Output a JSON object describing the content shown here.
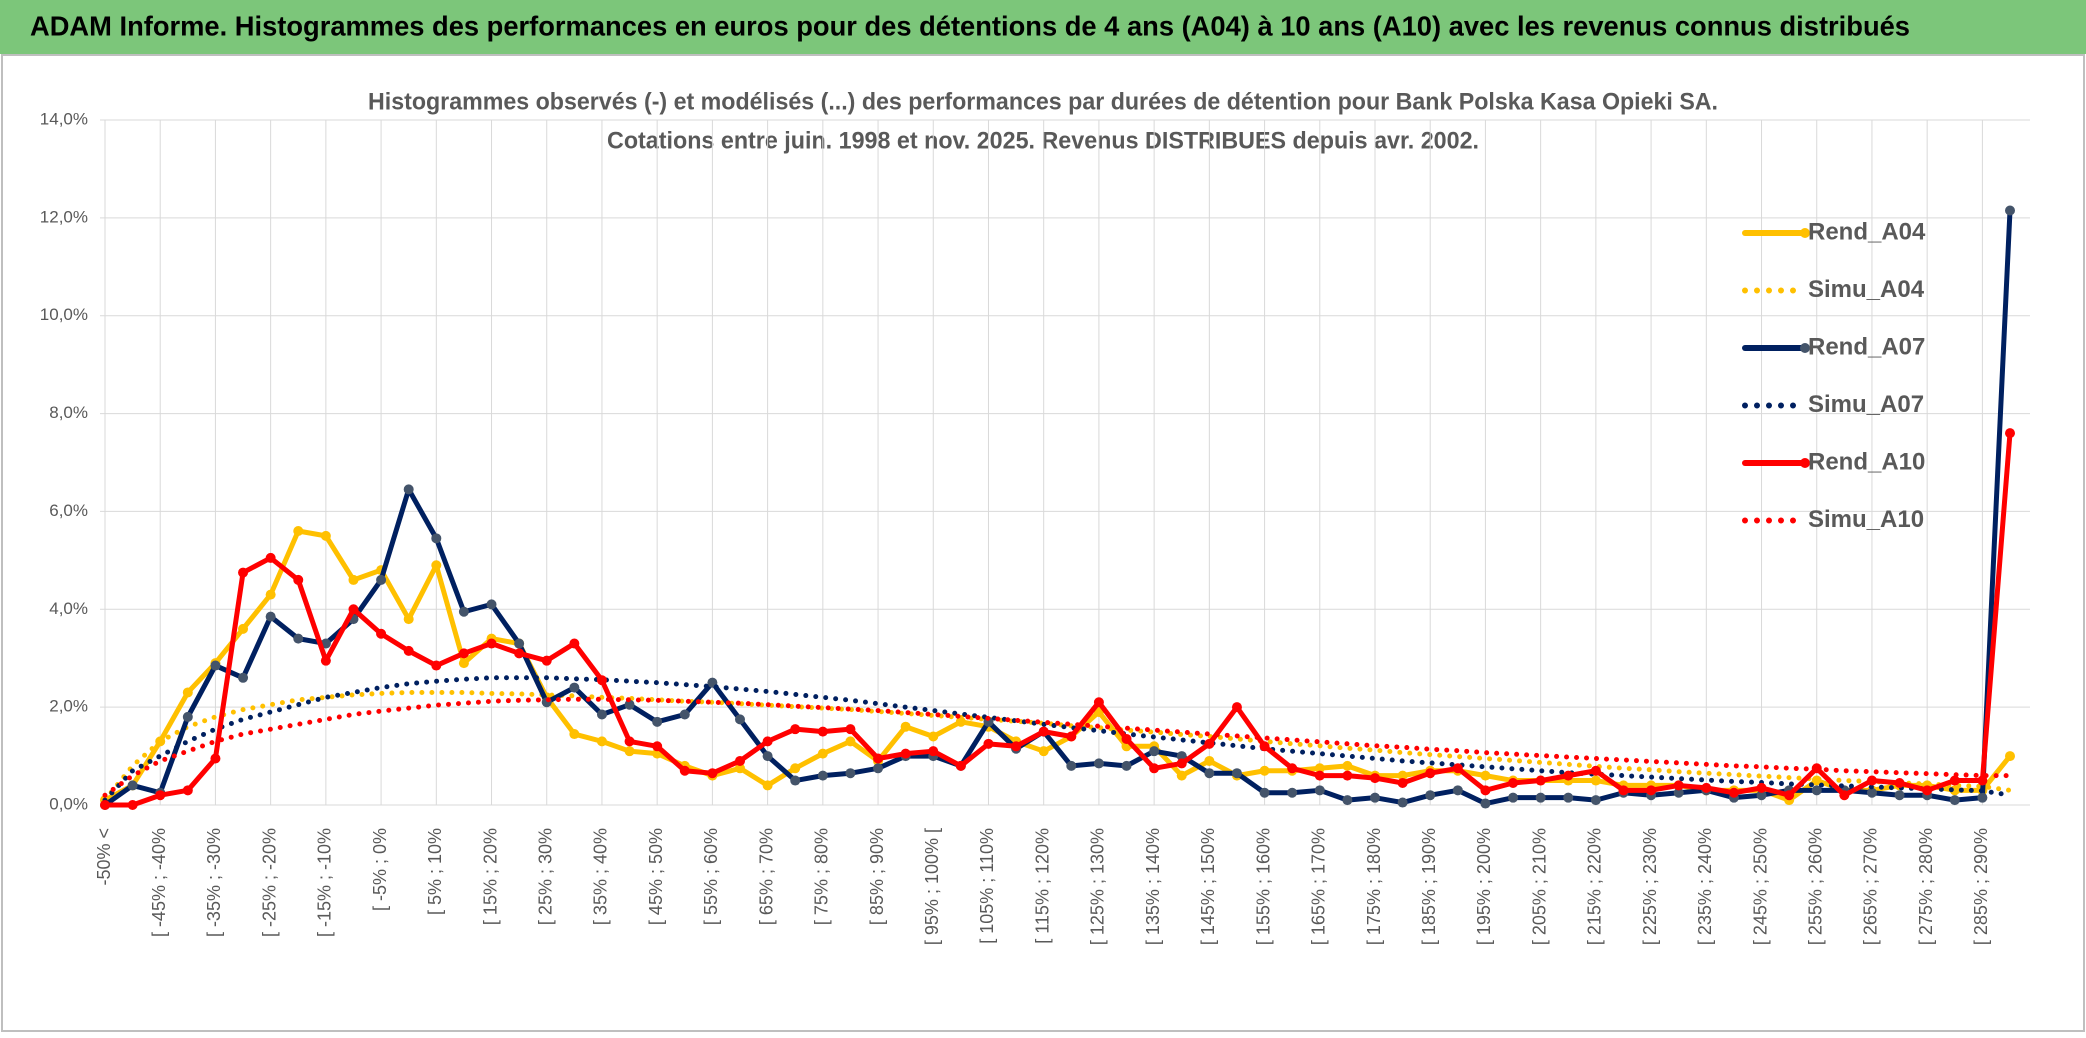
{
  "header": "ADAM Informe. Histogrammes des performances en euros pour des détentions de 4 ans (A04) à 10 ans (A10) avec les revenus connus distribués",
  "chart_data": {
    "type": "line",
    "title": "Histogrammes observés (-) et modélisés (...) des performances par durées de détention pour Bank Polska Kasa Opieki SA.",
    "subtitle": "Cotations entre juin. 1998 et nov. 2025. Revenus DISTRIBUES depuis avr. 2002.",
    "categories": [
      "-50% <",
      null,
      "[ -45% ; -40%",
      null,
      "[ -35% ; -30%",
      null,
      "[ -25% ; -20%",
      null,
      "[ -15% ; -10%",
      null,
      "[ -5% ; 0%",
      null,
      "[ 5% ; 10%",
      null,
      "[ 15% ; 20%",
      null,
      "[ 25% ; 30%",
      null,
      "[ 35% ; 40%",
      null,
      "[ 45% ; 50%",
      null,
      "[ 55% ; 60%",
      null,
      "[ 65% ; 70%",
      null,
      "[ 75% ; 80%",
      null,
      "[ 85% ; 90%",
      null,
      "[ 95% ; 100% [",
      null,
      "[ 105% ; 110%",
      null,
      "[ 115% ; 120%",
      null,
      "[ 125% ; 130%",
      null,
      "[ 135% ; 140%",
      null,
      "[ 145% ; 150%",
      null,
      "[ 155% ; 160%",
      null,
      "[ 165% ; 170%",
      null,
      "[ 175% ; 180%",
      null,
      "[ 185% ; 190%",
      null,
      "[ 195% ; 200%",
      null,
      "[ 205% ; 210%",
      null,
      "[ 215% ; 220%",
      null,
      "[ 225% ; 230%",
      null,
      "[ 235% ; 240%",
      null,
      "[ 245% ; 250%",
      null,
      "[ 255% ; 260%",
      null,
      "[ 265% ; 270%",
      null,
      "[ 275% ; 280%",
      null,
      "[ 285% ; 290%",
      null
    ],
    "ylim": [
      0,
      14
    ],
    "yticks": [
      {
        "value": 0,
        "label": "0,0%"
      },
      {
        "value": 2,
        "label": "2,0%"
      },
      {
        "value": 4,
        "label": "4,0%"
      },
      {
        "value": 6,
        "label": "6,0%"
      },
      {
        "value": 8,
        "label": "8,0%"
      },
      {
        "value": 10,
        "label": "10,0%"
      },
      {
        "value": 12,
        "label": "12,0%"
      },
      {
        "value": 14,
        "label": "14,0%"
      }
    ],
    "grid": true,
    "legend": "right",
    "series": [
      {
        "name": "Rend_A04",
        "color": "#ffc000",
        "marker_color": "#ffc000",
        "style": "solid",
        "values": [
          0.1,
          0.4,
          1.3,
          2.3,
          2.9,
          3.6,
          4.3,
          5.6,
          5.5,
          4.6,
          4.8,
          3.8,
          4.9,
          2.9,
          3.4,
          3.3,
          2.2,
          1.45,
          1.3,
          1.1,
          1.05,
          0.8,
          0.6,
          0.75,
          0.4,
          0.75,
          1.05,
          1.3,
          0.9,
          1.6,
          1.4,
          1.7,
          1.6,
          1.3,
          1.1,
          1.4,
          1.9,
          1.2,
          1.2,
          0.6,
          0.9,
          0.6,
          0.7,
          0.7,
          0.75,
          0.8,
          0.6,
          0.6,
          0.7,
          0.7,
          0.6,
          0.5,
          0.5,
          0.5,
          0.5,
          0.4,
          0.4,
          0.4,
          0.3,
          0.3,
          0.3,
          0.1,
          0.5,
          0.3,
          0.3,
          0.4,
          0.4,
          0.3,
          0.3,
          1.0
        ]
      },
      {
        "name": "Simu_A04",
        "color": "#ffc000",
        "style": "dotted",
        "values": [
          0.1,
          0.8,
          1.3,
          1.6,
          1.8,
          1.95,
          2.05,
          2.15,
          2.2,
          2.25,
          2.28,
          2.3,
          2.3,
          2.3,
          2.28,
          2.27,
          2.25,
          2.23,
          2.2,
          2.18,
          2.15,
          2.12,
          2.1,
          2.07,
          2.04,
          2.01,
          1.98,
          1.95,
          1.91,
          1.87,
          1.83,
          1.79,
          1.75,
          1.71,
          1.67,
          1.62,
          1.58,
          1.53,
          1.49,
          1.44,
          1.4,
          1.35,
          1.3,
          1.25,
          1.21,
          1.16,
          1.12,
          1.07,
          1.03,
          0.99,
          0.95,
          0.91,
          0.87,
          0.83,
          0.79,
          0.75,
          0.72,
          0.68,
          0.65,
          0.62,
          0.59,
          0.56,
          0.53,
          0.5,
          0.48,
          0.45,
          0.43,
          0.4,
          0.38,
          0.3
        ]
      },
      {
        "name": "Rend_A07",
        "color": "#002060",
        "marker_color": "#44546a",
        "style": "solid",
        "values": [
          0.0,
          0.4,
          0.25,
          1.8,
          2.85,
          2.6,
          3.85,
          3.4,
          3.3,
          3.8,
          4.6,
          6.45,
          5.45,
          3.95,
          4.1,
          3.3,
          2.1,
          2.4,
          1.85,
          2.05,
          1.7,
          1.85,
          2.5,
          1.75,
          1.0,
          0.5,
          0.6,
          0.65,
          0.75,
          1.0,
          1.0,
          0.8,
          1.7,
          1.15,
          1.5,
          0.8,
          0.85,
          0.8,
          1.1,
          1.0,
          0.65,
          0.65,
          0.25,
          0.25,
          0.3,
          0.1,
          0.15,
          0.05,
          0.2,
          0.3,
          0.03,
          0.15,
          0.15,
          0.15,
          0.1,
          0.25,
          0.2,
          0.25,
          0.3,
          0.15,
          0.2,
          0.3,
          0.3,
          0.3,
          0.25,
          0.2,
          0.2,
          0.1,
          0.15,
          12.15
        ]
      },
      {
        "name": "Simu_A07",
        "color": "#002060",
        "style": "dotted",
        "values": [
          0.1,
          0.7,
          1.0,
          1.3,
          1.55,
          1.75,
          1.9,
          2.05,
          2.2,
          2.3,
          2.4,
          2.48,
          2.53,
          2.57,
          2.6,
          2.6,
          2.6,
          2.58,
          2.56,
          2.53,
          2.5,
          2.46,
          2.42,
          2.37,
          2.32,
          2.26,
          2.2,
          2.14,
          2.07,
          2.0,
          1.93,
          1.86,
          1.79,
          1.72,
          1.65,
          1.58,
          1.52,
          1.45,
          1.39,
          1.33,
          1.27,
          1.21,
          1.15,
          1.1,
          1.05,
          1.0,
          0.95,
          0.9,
          0.86,
          0.82,
          0.78,
          0.74,
          0.7,
          0.66,
          0.63,
          0.6,
          0.57,
          0.54,
          0.51,
          0.48,
          0.46,
          0.43,
          0.41,
          0.39,
          0.37,
          0.35,
          0.33,
          0.31,
          0.29,
          0.2
        ]
      },
      {
        "name": "Rend_A10",
        "color": "#ff0000",
        "marker_color": "#ff0000",
        "style": "solid",
        "values": [
          0.0,
          0.0,
          0.2,
          0.3,
          0.95,
          4.75,
          5.05,
          4.6,
          2.95,
          4.0,
          3.5,
          3.15,
          2.85,
          3.1,
          3.3,
          3.1,
          2.95,
          3.3,
          2.55,
          1.3,
          1.2,
          0.7,
          0.65,
          0.9,
          1.3,
          1.55,
          1.5,
          1.55,
          0.95,
          1.05,
          1.1,
          0.8,
          1.25,
          1.2,
          1.5,
          1.4,
          2.1,
          1.35,
          0.75,
          0.85,
          1.25,
          2.0,
          1.2,
          0.75,
          0.6,
          0.6,
          0.55,
          0.45,
          0.65,
          0.75,
          0.3,
          0.45,
          0.5,
          0.6,
          0.7,
          0.3,
          0.3,
          0.4,
          0.35,
          0.25,
          0.35,
          0.2,
          0.75,
          0.2,
          0.5,
          0.45,
          0.3,
          0.5,
          0.5,
          7.6
        ]
      },
      {
        "name": "Simu_A10",
        "color": "#ff0000",
        "style": "dotted",
        "values": [
          0.2,
          0.6,
          0.9,
          1.1,
          1.3,
          1.45,
          1.55,
          1.65,
          1.75,
          1.85,
          1.92,
          1.98,
          2.04,
          2.08,
          2.12,
          2.14,
          2.15,
          2.16,
          2.16,
          2.15,
          2.14,
          2.12,
          2.1,
          2.08,
          2.05,
          2.02,
          1.99,
          1.96,
          1.93,
          1.89,
          1.85,
          1.81,
          1.77,
          1.73,
          1.69,
          1.65,
          1.61,
          1.57,
          1.53,
          1.49,
          1.45,
          1.41,
          1.37,
          1.33,
          1.29,
          1.25,
          1.21,
          1.18,
          1.14,
          1.11,
          1.07,
          1.04,
          1.01,
          0.98,
          0.95,
          0.92,
          0.89,
          0.86,
          0.83,
          0.8,
          0.78,
          0.75,
          0.73,
          0.7,
          0.68,
          0.66,
          0.64,
          0.62,
          0.6,
          0.6
        ]
      }
    ]
  }
}
